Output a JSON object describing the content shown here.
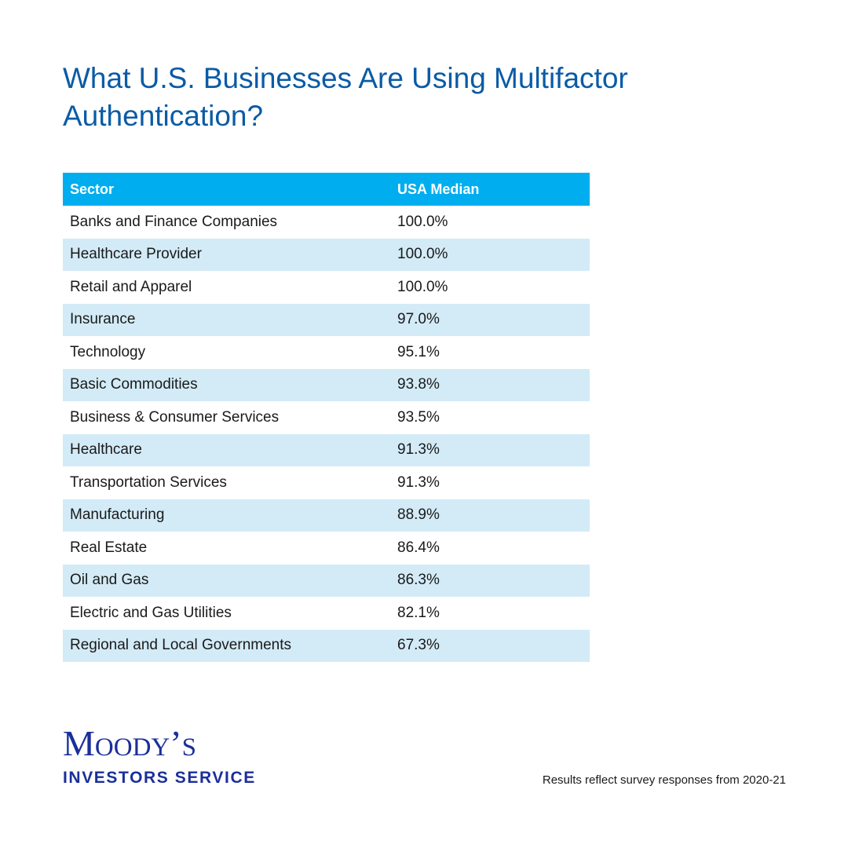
{
  "title": "What U.S. Businesses Are Using Multifactor Authentication?",
  "colors": {
    "title": "#0a5ba6",
    "header_bg": "#00aeef",
    "row_alt_bg": "#d3ebf7",
    "logo": "#1b2f9a"
  },
  "chart_data": {
    "type": "table",
    "title": "What U.S. Businesses Are Using Multifactor Authentication?",
    "columns": [
      "Sector",
      "USA Median"
    ],
    "rows": [
      [
        "Banks and Finance Companies",
        "100.0%"
      ],
      [
        "Healthcare Provider",
        "100.0%"
      ],
      [
        "Retail and Apparel",
        "100.0%"
      ],
      [
        "Insurance",
        "97.0%"
      ],
      [
        "Technology",
        "95.1%"
      ],
      [
        "Basic Commodities",
        "93.8%"
      ],
      [
        "Business & Consumer Services",
        "93.5%"
      ],
      [
        "Healthcare",
        "91.3%"
      ],
      [
        "Transportation Services",
        "91.3%"
      ],
      [
        "Manufacturing",
        "88.9%"
      ],
      [
        "Real Estate",
        "86.4%"
      ],
      [
        "Oil and Gas",
        "86.3%"
      ],
      [
        "Electric and Gas Utilities",
        "82.1%"
      ],
      [
        "Regional and Local Governments",
        "67.3%"
      ]
    ]
  },
  "logo": {
    "main": "Moody’s",
    "sub": "INVESTORS SERVICE"
  },
  "footnote": "Results reflect survey responses from 2020-21"
}
